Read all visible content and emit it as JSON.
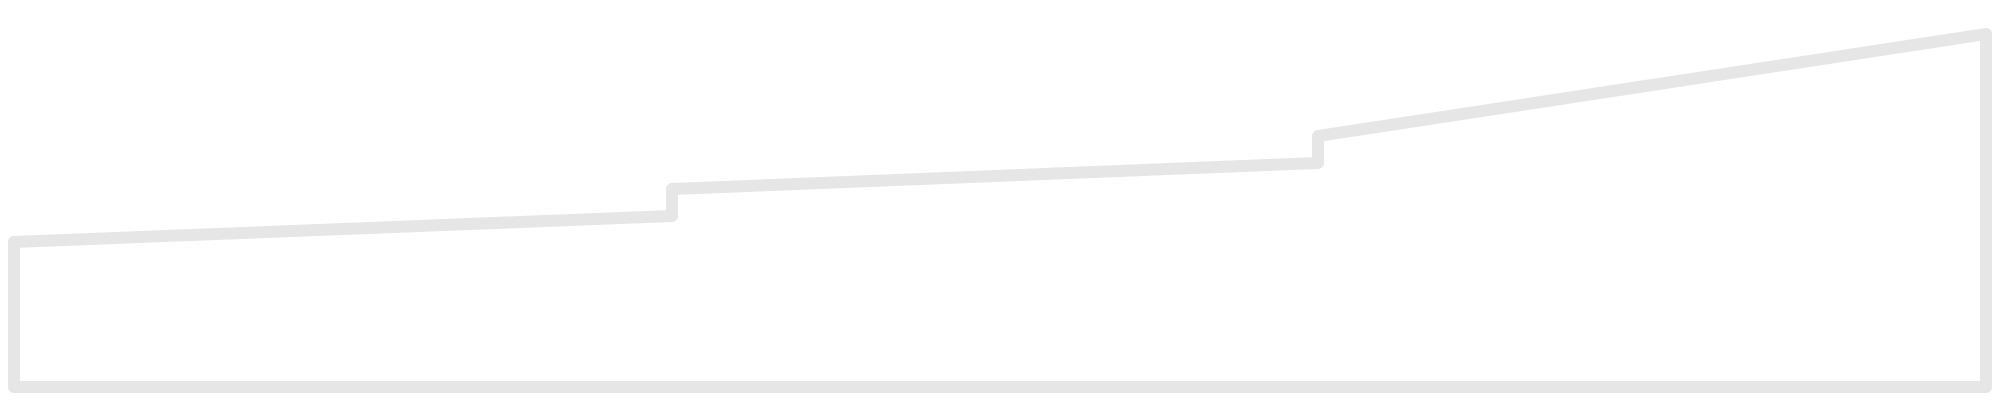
{
  "shape": {
    "kind": "stepped-outline",
    "segments": 3,
    "stroke_color": "#e6e6e6",
    "fill_color": "#ffffff"
  }
}
